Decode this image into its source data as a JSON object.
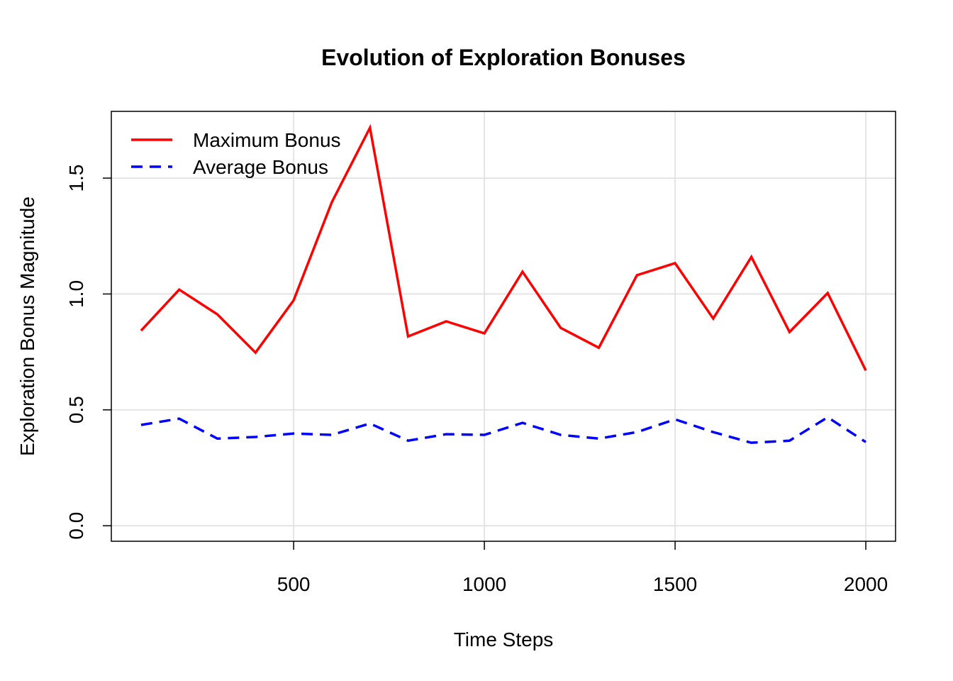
{
  "chart_data": {
    "type": "line",
    "title": "Evolution of Exploration Bonuses",
    "xlabel": "Time Steps",
    "ylabel": "Exploration Bonus Magnitude",
    "xlim": [
      22,
      2078
    ],
    "ylim": [
      -0.067,
      1.788
    ],
    "xticks": [
      500,
      1000,
      1500,
      2000
    ],
    "xtick_labels": [
      "500",
      "1000",
      "1500",
      "2000"
    ],
    "yticks": [
      0,
      0.5,
      1,
      1.5
    ],
    "ytick_labels": [
      "0.0",
      "0.5",
      "1.0",
      "1.5"
    ],
    "grid": true,
    "legend_position": "top-left",
    "x": [
      100,
      200,
      300,
      400,
      500,
      600,
      700,
      800,
      900,
      1000,
      1100,
      1200,
      1300,
      1400,
      1500,
      1600,
      1700,
      1800,
      1900,
      2000
    ],
    "series": [
      {
        "name": "Maximum Bonus",
        "color": "#ff0000",
        "dash": "solid",
        "values": [
          0.842,
          1.019,
          0.912,
          0.747,
          0.973,
          1.396,
          1.717,
          0.817,
          0.882,
          0.83,
          1.096,
          0.854,
          0.768,
          1.081,
          1.133,
          0.894,
          1.16,
          0.836,
          1.004,
          0.67
        ]
      },
      {
        "name": "Average Bonus",
        "color": "#0000ff",
        "dash": "dashed",
        "values": [
          0.435,
          0.462,
          0.376,
          0.383,
          0.398,
          0.392,
          0.441,
          0.367,
          0.395,
          0.392,
          0.444,
          0.392,
          0.376,
          0.404,
          0.459,
          0.404,
          0.358,
          0.367,
          0.468,
          0.361
        ]
      }
    ]
  }
}
